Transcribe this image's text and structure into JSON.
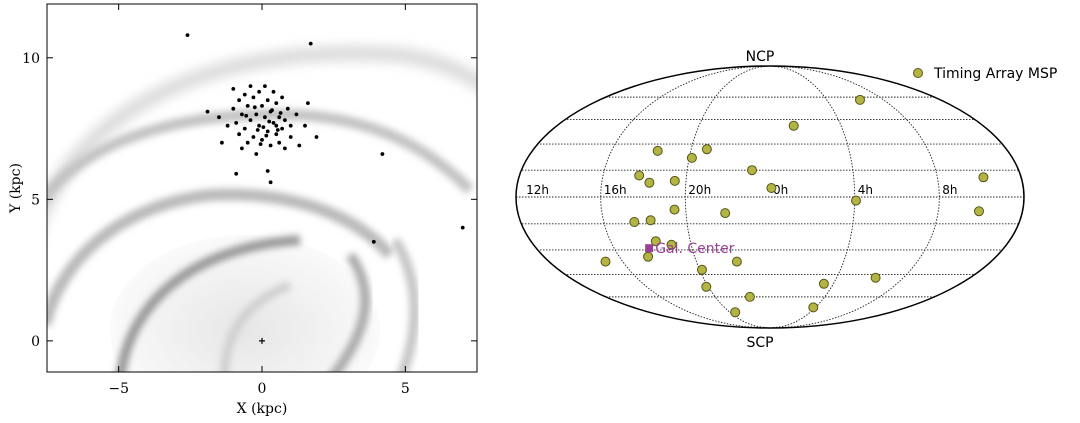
{
  "chart_data": [
    {
      "type": "scatter",
      "xlabel": "X (kpc)",
      "ylabel": "Y (kpc)",
      "xlim": [
        -7.5,
        7.5
      ],
      "ylim": [
        -1.1,
        11.9
      ],
      "xticks": [
        -5,
        0,
        5
      ],
      "yticks": [
        0,
        5,
        10
      ],
      "grid": false,
      "background": "grayscale Milky Way spiral-arm model",
      "galactic_center": {
        "x": 0,
        "y": 0
      },
      "points": [
        {
          "x": -2.6,
          "y": 10.8
        },
        {
          "x": 1.7,
          "y": 10.5
        },
        {
          "x": 4.2,
          "y": 6.6
        },
        {
          "x": 7.0,
          "y": 4.0
        },
        {
          "x": 3.9,
          "y": 3.5
        },
        {
          "x": -0.9,
          "y": 5.9
        },
        {
          "x": 0.3,
          "y": 5.6
        },
        {
          "x": 0.2,
          "y": 6.0
        },
        {
          "x": -1.9,
          "y": 8.1
        },
        {
          "x": -1.5,
          "y": 7.9
        },
        {
          "x": -1.4,
          "y": 7.0
        },
        {
          "x": -1.2,
          "y": 7.6
        },
        {
          "x": -1.0,
          "y": 8.9
        },
        {
          "x": -1.0,
          "y": 8.2
        },
        {
          "x": -0.9,
          "y": 7.7
        },
        {
          "x": -0.8,
          "y": 8.5
        },
        {
          "x": -0.8,
          "y": 7.3
        },
        {
          "x": -0.7,
          "y": 8.0
        },
        {
          "x": -0.7,
          "y": 6.8
        },
        {
          "x": -0.6,
          "y": 8.7
        },
        {
          "x": -0.6,
          "y": 7.5
        },
        {
          "x": -0.5,
          "y": 8.3
        },
        {
          "x": -0.5,
          "y": 7.0
        },
        {
          "x": -0.4,
          "y": 9.0
        },
        {
          "x": -0.4,
          "y": 7.8
        },
        {
          "x": -0.3,
          "y": 8.6
        },
        {
          "x": -0.3,
          "y": 7.2
        },
        {
          "x": -0.2,
          "y": 8.0
        },
        {
          "x": -0.2,
          "y": 6.6
        },
        {
          "x": -0.1,
          "y": 8.8
        },
        {
          "x": -0.1,
          "y": 7.6
        },
        {
          "x": 0.0,
          "y": 8.3
        },
        {
          "x": 0.0,
          "y": 7.1
        },
        {
          "x": 0.1,
          "y": 9.0
        },
        {
          "x": 0.1,
          "y": 7.9
        },
        {
          "x": 0.2,
          "y": 8.5
        },
        {
          "x": 0.2,
          "y": 7.4
        },
        {
          "x": 0.3,
          "y": 6.9
        },
        {
          "x": 0.3,
          "y": 8.1
        },
        {
          "x": 0.4,
          "y": 7.7
        },
        {
          "x": 0.4,
          "y": 8.8
        },
        {
          "x": 0.5,
          "y": 7.3
        },
        {
          "x": 0.5,
          "y": 8.4
        },
        {
          "x": 0.6,
          "y": 7.9
        },
        {
          "x": 0.6,
          "y": 7.0
        },
        {
          "x": 0.7,
          "y": 7.5
        },
        {
          "x": 0.7,
          "y": 8.6
        },
        {
          "x": 0.8,
          "y": 6.8
        },
        {
          "x": 0.8,
          "y": 7.8
        },
        {
          "x": 0.9,
          "y": 8.2
        },
        {
          "x": 1.0,
          "y": 7.2
        },
        {
          "x": 1.0,
          "y": 7.6
        },
        {
          "x": 1.2,
          "y": 8.0
        },
        {
          "x": 1.3,
          "y": 6.9
        },
        {
          "x": 1.5,
          "y": 7.6
        },
        {
          "x": 1.6,
          "y": 8.4
        },
        {
          "x": 1.9,
          "y": 7.2
        },
        {
          "x": 0.5,
          "y": 7.6
        },
        {
          "x": 0.55,
          "y": 7.45
        },
        {
          "x": -0.05,
          "y": 6.95
        },
        {
          "x": 0.15,
          "y": 7.25
        },
        {
          "x": -0.25,
          "y": 8.25
        },
        {
          "x": 0.35,
          "y": 8.15
        },
        {
          "x": 0.05,
          "y": 7.55
        },
        {
          "x": -0.15,
          "y": 7.45
        },
        {
          "x": 0.25,
          "y": 7.75
        },
        {
          "x": 0.65,
          "y": 8.05
        },
        {
          "x": -0.55,
          "y": 7.95
        }
      ]
    },
    {
      "type": "scatter",
      "projection": "mollweide",
      "labels": {
        "north": "NCP",
        "south": "SCP"
      },
      "ra_tick_labels": [
        "12h",
        "16h",
        "20h",
        "0h",
        "4h",
        "8h"
      ],
      "legend": {
        "label": "Timing Array MSP",
        "position": "top-right"
      },
      "colors": {
        "msp": "#b4b444",
        "msp_edge": "#55551a",
        "gal_center": "#9b3e98"
      },
      "annotation": {
        "label": "Gal. Center",
        "lon": -93,
        "lat": -29
      },
      "points": [
        {
          "lon": 95,
          "lat": 58
        },
        {
          "lon": 20,
          "lat": 41
        },
        {
          "lon": -48,
          "lat": 27
        },
        {
          "lon": -85,
          "lat": 26
        },
        {
          "lon": -58,
          "lat": 22
        },
        {
          "lon": -94,
          "lat": 12
        },
        {
          "lon": -86,
          "lat": 8
        },
        {
          "lon": -68,
          "lat": 9
        },
        {
          "lon": -13,
          "lat": 15
        },
        {
          "lon": 1,
          "lat": 5
        },
        {
          "lon": 153,
          "lat": 11
        },
        {
          "lon": 61,
          "lat": -2
        },
        {
          "lon": 149,
          "lat": -8
        },
        {
          "lon": -68,
          "lat": -7
        },
        {
          "lon": -32,
          "lat": -9
        },
        {
          "lon": -98,
          "lat": -14
        },
        {
          "lon": -86,
          "lat": -13
        },
        {
          "lon": -86,
          "lat": -25
        },
        {
          "lon": -75,
          "lat": -27
        },
        {
          "lon": -97,
          "lat": -34
        },
        {
          "lon": -134,
          "lat": -37
        },
        {
          "lon": -27,
          "lat": -37
        },
        {
          "lon": -58,
          "lat": -42
        },
        {
          "lon": 95,
          "lat": -47
        },
        {
          "lon": -62,
          "lat": -53
        },
        {
          "lon": 51,
          "lat": -51
        },
        {
          "lon": -22,
          "lat": -60
        },
        {
          "lon": 57,
          "lat": -68
        },
        {
          "lon": -52,
          "lat": -72
        }
      ]
    }
  ]
}
